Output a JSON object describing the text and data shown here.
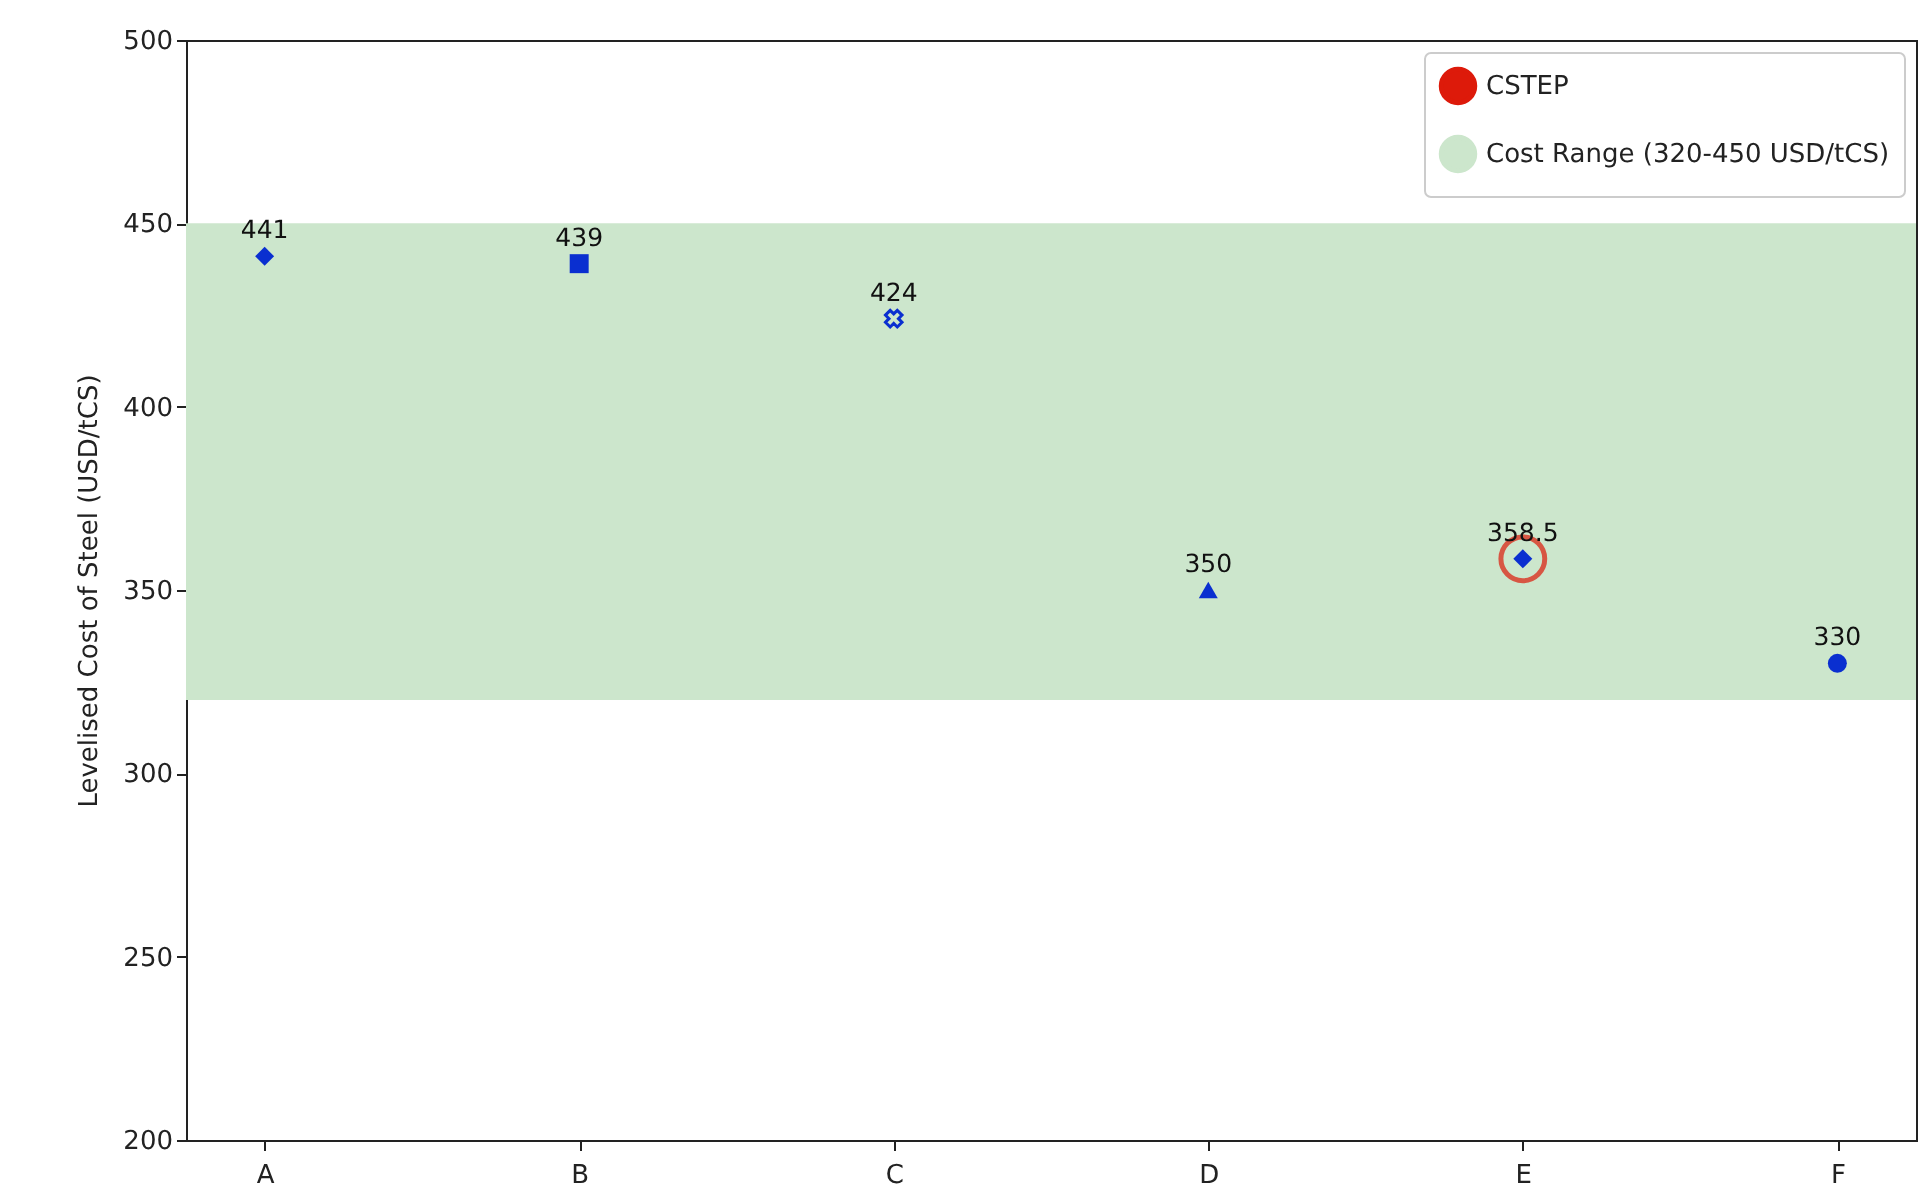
{
  "chart_data": {
    "type": "scatter",
    "ylabel": "Levelised Cost of Steel (USD/tCS)",
    "categories": [
      "A",
      "B",
      "C",
      "D",
      "E",
      "F"
    ],
    "series": [
      {
        "color": "#0a2fd0",
        "marker": "diamond",
        "values": [
          441,
          null,
          null,
          null,
          null,
          null
        ],
        "value_labels": [
          "441",
          null,
          null,
          null,
          null,
          null
        ]
      },
      {
        "color": "#0a2fd0",
        "marker": "square",
        "values": [
          null,
          439,
          null,
          null,
          null,
          null
        ],
        "value_labels": [
          null,
          "439",
          null,
          null,
          null,
          null
        ]
      },
      {
        "color": "#0a2fd0",
        "marker": "cross",
        "values": [
          null,
          null,
          424,
          null,
          null,
          null
        ],
        "value_labels": [
          null,
          null,
          "424",
          null,
          null,
          null
        ]
      },
      {
        "color": "#0a2fd0",
        "marker": "triangle",
        "values": [
          null,
          null,
          null,
          350,
          null,
          null
        ],
        "value_labels": [
          null,
          null,
          null,
          "350",
          null,
          null
        ]
      },
      {
        "color": "#0a2fd0",
        "marker": "diamond",
        "values": [
          null,
          null,
          null,
          null,
          358.5,
          null
        ],
        "value_labels": [
          null,
          null,
          null,
          null,
          "358.5",
          null
        ]
      },
      {
        "color": "#0a2fd0",
        "marker": "circle",
        "values": [
          null,
          null,
          null,
          null,
          null,
          330
        ],
        "value_labels": [
          null,
          null,
          null,
          null,
          null,
          "330"
        ]
      },
      {
        "name": "CSTEP",
        "color": "#dd1a0a",
        "marker": "circle",
        "values": [
          null,
          null,
          null,
          null,
          358.5,
          null
        ]
      }
    ],
    "bands": [
      {
        "axis": "y",
        "from": 320,
        "to": 450,
        "label": "Cost Range (320-450 USD/tCS)",
        "color": "#cce6cc"
      }
    ],
    "ylim": [
      200,
      500
    ],
    "yticks": [
      200,
      250,
      300,
      350,
      400,
      450,
      500
    ],
    "grid": false,
    "legend": "top right"
  }
}
